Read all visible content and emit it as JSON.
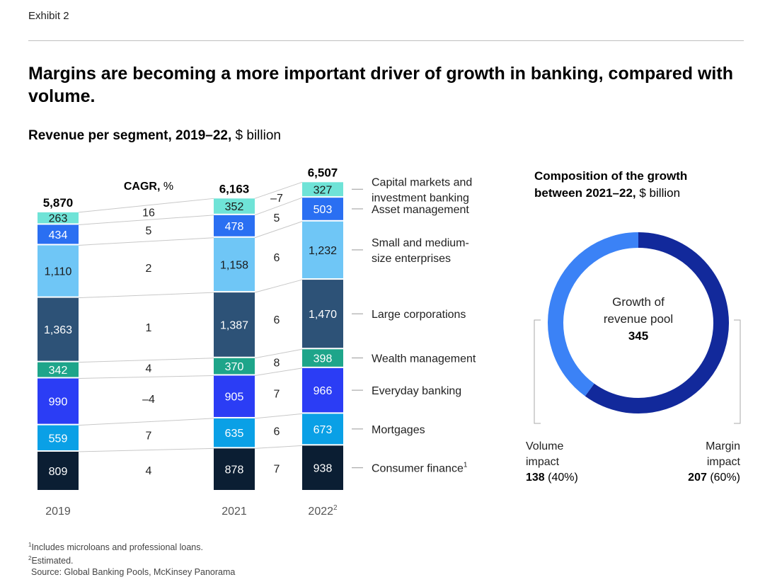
{
  "exhibit": "Exhibit 2",
  "title": "Margins are becoming a more important driver of growth in banking, compared with volume.",
  "subtitle_bold": "Revenue per segment, 2019–22,",
  "subtitle_unit": " $ billion",
  "cagr_header_bold": "CAGR,",
  "cagr_header_unit": " %",
  "chart_data": [
    {
      "type": "bar",
      "stacked": true,
      "title": "Revenue per segment, 2019–22, $ billion",
      "categories": [
        "2019",
        "2021",
        "2022"
      ],
      "category_superscripts": [
        "",
        "",
        "2"
      ],
      "totals": [
        "5,870",
        "6,163",
        "6,507"
      ],
      "series": [
        {
          "name": "Consumer finance",
          "sup": "1",
          "color": "#0b1e33",
          "values": [
            809,
            878,
            938
          ],
          "labels": [
            "809",
            "878",
            "938"
          ],
          "cagr_1921": "4",
          "cagr_2122": "7"
        },
        {
          "name": "Mortgages",
          "color": "#0aa0e6",
          "values": [
            559,
            635,
            673
          ],
          "labels": [
            "559",
            "635",
            "673"
          ],
          "cagr_1921": "7",
          "cagr_2122": "6"
        },
        {
          "name": "Everyday banking",
          "color": "#2b3df5",
          "values": [
            990,
            905,
            966
          ],
          "labels": [
            "990",
            "905",
            "966"
          ],
          "cagr_1921": "–4",
          "cagr_2122": "7"
        },
        {
          "name": "Wealth management",
          "color": "#1ea58a",
          "values": [
            342,
            370,
            398
          ],
          "labels": [
            "342",
            "370",
            "398"
          ],
          "cagr_1921": "4",
          "cagr_2122": "8"
        },
        {
          "name": "Large corporations",
          "color": "#2d5277",
          "values": [
            1363,
            1387,
            1470
          ],
          "labels": [
            "1,363",
            "1,387",
            "1,470"
          ],
          "cagr_1921": "1",
          "cagr_2122": "6"
        },
        {
          "name": "Small and medium-|size enterprises",
          "color": "#6fc6f6",
          "values": [
            1110,
            1158,
            1232
          ],
          "labels": [
            "1,110",
            "1,158",
            "1,232"
          ],
          "cagr_1921": "2",
          "cagr_2122": "6"
        },
        {
          "name": "Asset management",
          "color": "#2a6ff2",
          "values": [
            434,
            478,
            503
          ],
          "labels": [
            "434",
            "478",
            "503"
          ],
          "cagr_1921": "5",
          "cagr_2122": "5"
        },
        {
          "name": "Capital markets and|investment banking",
          "color": "#6fe3d7",
          "values": [
            263,
            352,
            327
          ],
          "labels": [
            "263",
            "352",
            "327"
          ],
          "cagr_1921": "16",
          "cagr_2122": "–7"
        }
      ]
    },
    {
      "type": "pie",
      "donut": true,
      "title_bold": "Composition of the growth|between 2021–22,",
      "title_unit": " $ billion",
      "center_label": "Growth of|revenue pool",
      "center_value": "345",
      "slices": [
        {
          "name": "Margin|impact",
          "value": 207,
          "value_label": "207",
          "share_label": "(60%)",
          "color": "#12299b"
        },
        {
          "name": "Volume|impact",
          "value": 138,
          "value_label": "138",
          "share_label": "(40%)",
          "color": "#3b82f6"
        }
      ]
    }
  ],
  "footnotes": [
    {
      "sup": "1",
      "text": "Includes microloans and professional loans."
    },
    {
      "sup": "2",
      "text": "Estimated."
    },
    {
      "sup": "",
      "text": "Source: Global Banking Pools, McKinsey Panorama"
    }
  ]
}
